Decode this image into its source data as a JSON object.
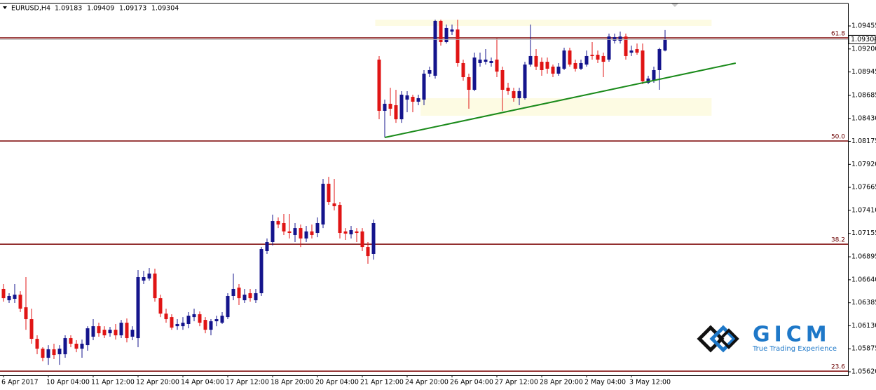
{
  "chart_data": {
    "type": "candlestick",
    "symbol": "EURUSD,H4",
    "up_color": "#14148c",
    "down_color": "#e01414",
    "level_color": "#7a0000",
    "trend_color": "#1a8a1a",
    "zone_color": "#fdfbe3",
    "ylim": [
      1.05581,
      1.09704
    ],
    "yticks": [
      1.09455,
      {
        "value": 1.092,
        "label": "1.09200"
      },
      1.08945,
      1.08685,
      {
        "value": 1.0843,
        "label": "1.08430"
      },
      1.08175,
      {
        "value": 1.0792,
        "label": "1.07920"
      },
      1.07665,
      {
        "value": 1.0741,
        "label": "1.07410"
      },
      1.07155,
      1.06895,
      {
        "value": 1.0664,
        "label": "1.06640"
      },
      1.06385,
      {
        "value": 1.0613,
        "label": "1.06130"
      },
      1.05875,
      {
        "value": 1.0562,
        "label": "1.05620"
      }
    ],
    "categories": [
      "6 Apr 2017",
      null,
      null,
      null,
      null,
      null,
      null,
      null,
      "10 Apr 04:00",
      null,
      null,
      null,
      null,
      null,
      null,
      null,
      "11 Apr 12:00",
      null,
      null,
      null,
      null,
      null,
      null,
      null,
      "12 Apr 20:00",
      null,
      null,
      null,
      null,
      null,
      null,
      null,
      "14 Apr 04:00",
      null,
      null,
      null,
      null,
      null,
      null,
      null,
      "17 Apr 12:00",
      null,
      null,
      null,
      null,
      null,
      null,
      null,
      "18 Apr 20:00",
      null,
      null,
      null,
      null,
      null,
      null,
      null,
      "20 Apr 04:00",
      null,
      null,
      null,
      null,
      null,
      null,
      null,
      "21 Apr 12:00",
      null,
      null,
      null,
      null,
      null,
      null,
      null,
      "24 Apr 20:00",
      null,
      null,
      null,
      null,
      null,
      null,
      null,
      "26 Apr 04:00",
      null,
      null,
      null,
      null,
      null,
      null,
      null,
      "27 Apr 12:00",
      null,
      null,
      null,
      null,
      null,
      null,
      null,
      "28 Apr 20:00",
      null,
      null,
      null,
      null,
      null,
      null,
      null,
      "2 May 04:00",
      null,
      null,
      null,
      null,
      null,
      null,
      null,
      "3 May 12:00",
      null,
      null,
      null,
      null,
      null,
      null
    ],
    "open": [
      1.06538,
      1.06413,
      1.06429,
      1.06475,
      1.06335,
      1.06203,
      1.05985,
      1.05876,
      1.05775,
      1.05869,
      1.05814,
      1.05814,
      1.05993,
      1.05931,
      1.05876,
      1.05915,
      1.06009,
      1.06125,
      1.06086,
      1.06047,
      1.06086,
      1.06024,
      1.06164,
      1.06009,
      1.05993,
      1.06631,
      1.06654,
      1.06709,
      1.06436,
      1.06265,
      1.06226,
      1.06125,
      1.06125,
      1.06149,
      1.06226,
      1.06258,
      1.06195,
      1.06086,
      1.0618,
      1.06164,
      1.06226,
      1.0646,
      1.06553,
      1.06413,
      1.06491,
      1.06413,
      1.06491,
      1.06958,
      1.07059,
      1.07292,
      1.07269,
      1.07176,
      1.07137,
      1.07214,
      1.07098,
      1.07176,
      1.0716,
      1.07253,
      1.07705,
      1.07487,
      1.07471,
      1.07176,
      1.07144,
      1.07176,
      1.07176,
      1.07004,
      1.06927,
      1.09082,
      1.08514,
      1.08592,
      1.08576,
      1.0842,
      1.08638,
      1.08669,
      1.08615,
      1.08638,
      1.08926,
      1.08903,
      1.0951,
      1.09276,
      1.09393,
      1.09416,
      1.09043,
      1.08887,
      1.08747,
      1.09043,
      1.09058,
      1.09043,
      1.09082,
      1.08965,
      1.0877,
      1.08732,
      1.08654,
      1.08654,
      1.09027,
      1.09121,
      1.09058,
      1.09058,
      1.09004,
      1.08926,
      1.08981,
      1.09183,
      1.09043,
      1.08981,
      1.09027,
      1.09136,
      1.09136,
      1.09121,
      1.09082,
      1.09292,
      1.09292,
      1.09338,
      1.09159,
      1.09198,
      1.09183,
      1.08825,
      1.08848,
      1.08965,
      1.09183
    ],
    "high": [
      1.06592,
      1.06491,
      1.06592,
      1.06514,
      1.0667,
      1.0632,
      1.06024,
      1.05892,
      1.05915,
      1.05931,
      1.05915,
      1.06024,
      1.06024,
      1.0597,
      1.05977,
      1.06125,
      1.06203,
      1.06164,
      1.06125,
      1.06118,
      1.06149,
      1.06195,
      1.06211,
      1.06125,
      1.06748,
      1.0674,
      1.06771,
      1.06763,
      1.06475,
      1.0632,
      1.06258,
      1.06203,
      1.06226,
      1.06281,
      1.0632,
      1.06289,
      1.06226,
      1.06203,
      1.06242,
      1.06281,
      1.06491,
      1.06709,
      1.06592,
      1.06538,
      1.06538,
      1.06538,
      1.07004,
      1.07098,
      1.07362,
      1.07331,
      1.0737,
      1.0737,
      1.07269,
      1.07253,
      1.07238,
      1.07253,
      1.07331,
      1.07759,
      1.07782,
      1.07759,
      1.07502,
      1.07214,
      1.07238,
      1.07214,
      1.07214,
      1.07059,
      1.07308,
      1.09121,
      1.08638,
      1.0877,
      1.08747,
      1.08732,
      1.08732,
      1.08693,
      1.08693,
      1.08965,
      1.09004,
      1.09525,
      1.09525,
      1.09471,
      1.09471,
      1.09525,
      1.09082,
      1.08926,
      1.09159,
      1.09159,
      1.09198,
      1.09105,
      1.09315,
      1.09004,
      1.08825,
      1.0877,
      1.0877,
      1.09058,
      1.09471,
      1.09198,
      1.09105,
      1.09105,
      1.09027,
      1.09043,
      1.09214,
      1.09214,
      1.09082,
      1.09082,
      1.09183,
      1.09276,
      1.09183,
      1.09159,
      1.0937,
      1.0937,
      1.09393,
      1.0937,
      1.09237,
      1.09261,
      1.09261,
      1.08903,
      1.09004,
      1.09214,
      1.09409
    ],
    "low": [
      1.06398,
      1.06382,
      1.06382,
      1.06281,
      1.06086,
      1.05931,
      1.05814,
      1.05736,
      1.05697,
      1.0576,
      1.05697,
      1.05775,
      1.05892,
      1.05837,
      1.05775,
      1.05853,
      1.0597,
      1.06009,
      1.05993,
      1.06009,
      1.05977,
      1.05993,
      1.05946,
      1.0597,
      1.05892,
      1.06592,
      1.06631,
      1.06398,
      1.06226,
      1.06164,
      1.06086,
      1.06086,
      1.06086,
      1.06102,
      1.0618,
      1.06125,
      1.06047,
      1.06024,
      1.06125,
      1.06149,
      1.06203,
      1.06413,
      1.06359,
      1.06382,
      1.06398,
      1.06382,
      1.0646,
      1.06927,
      1.0702,
      1.07214,
      1.07137,
      1.07098,
      1.07059,
      1.07004,
      1.07059,
      1.07098,
      1.07113,
      1.07214,
      1.07471,
      1.07409,
      1.07098,
      1.07082,
      1.07098,
      1.07059,
      1.06958,
      1.06818,
      1.06864,
      1.0842,
      1.08218,
      1.08459,
      1.08381,
      1.08381,
      1.08498,
      1.08498,
      1.08576,
      1.08576,
      1.08887,
      1.08872,
      1.09237,
      1.09261,
      1.09354,
      1.09004,
      1.08848,
      1.08537,
      1.08732,
      1.09004,
      1.09027,
      1.09004,
      1.08887,
      1.08514,
      1.08693,
      1.08615,
      1.08576,
      1.08638,
      1.09004,
      1.08965,
      1.08903,
      1.08926,
      1.08887,
      1.08903,
      1.08965,
      1.09004,
      1.08949,
      1.08965,
      1.09004,
      1.09082,
      1.09043,
      1.08887,
      1.09058,
      1.09261,
      1.09261,
      1.09082,
      1.09121,
      1.09136,
      1.08809,
      1.08809,
      1.08825,
      1.08747,
      1.09173
    ],
    "close": [
      1.06436,
      1.0646,
      1.06475,
      1.0632,
      1.06203,
      1.05985,
      1.05876,
      1.05775,
      1.05869,
      1.05806,
      1.05876,
      1.05993,
      1.05931,
      1.05876,
      1.05931,
      1.06102,
      1.06125,
      1.06047,
      1.06024,
      1.06086,
      1.06024,
      1.06164,
      1.05993,
      1.06086,
      1.0667,
      1.0667,
      1.06709,
      1.06436,
      1.06265,
      1.06203,
      1.0611,
      1.06149,
      1.06164,
      1.06242,
      1.06258,
      1.06164,
      1.06086,
      1.0618,
      1.06203,
      1.06242,
      1.0646,
      1.06538,
      1.06436,
      1.06475,
      1.06436,
      1.06491,
      1.06981,
      1.07059,
      1.07292,
      1.07253,
      1.07176,
      1.0716,
      1.07214,
      1.07098,
      1.07176,
      1.07137,
      1.07269,
      1.07705,
      1.07502,
      1.07456,
      1.0716,
      1.07152,
      1.07191,
      1.0716,
      1.07004,
      1.06903,
      1.07269,
      1.08514,
      1.08592,
      1.08537,
      1.0842,
      1.08693,
      1.08685,
      1.08615,
      1.08654,
      1.08926,
      1.08965,
      1.0951,
      1.09276,
      1.09432,
      1.09416,
      1.09043,
      1.08887,
      1.08747,
      1.09105,
      1.09082,
      1.09082,
      1.09066,
      1.08949,
      1.08747,
      1.08732,
      1.08654,
      1.08732,
      1.09027,
      1.09121,
      1.09004,
      1.08965,
      1.08981,
      1.08926,
      1.09004,
      1.09183,
      1.09027,
      1.08981,
      1.09043,
      1.09121,
      1.09121,
      1.09082,
      1.09058,
      1.09338,
      1.09331,
      1.09338,
      1.09121,
      1.09183,
      1.09159,
      1.08841,
      1.08872,
      1.08965,
      1.09198,
      1.09304
    ],
    "levels": [
      {
        "label": "61.8",
        "value": 1.09323
      },
      {
        "label": "50.0",
        "value": 1.08179
      },
      {
        "label": "38.2",
        "value": 1.07035
      },
      {
        "label": "23.6",
        "value": 1.05627
      }
    ],
    "trendline": {
      "x": [
        68,
        130.6
      ],
      "y": [
        1.08218,
        1.09043
      ]
    },
    "zones": [
      {
        "x": [
          66.3,
          126.3
        ],
        "y": [
          1.09455,
          1.09525
        ]
      },
      {
        "x": [
          74.4,
          126.3
        ],
        "y": [
          1.08459,
          1.08654
        ]
      }
    ]
  },
  "logo": {
    "name": "GICM",
    "tagline": "True Trading Experience"
  }
}
